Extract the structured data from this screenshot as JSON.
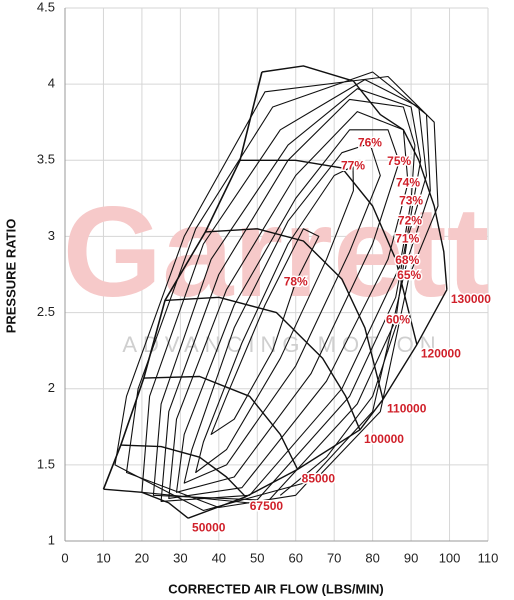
{
  "chart_data": {
    "type": "line",
    "xlabel": "CORRECTED AIR FLOW (LBS/MIN)",
    "ylabel": "PRESSURE RATIO",
    "watermark": "Garrett",
    "watermark_tagline": "ADVANCING MOTION",
    "xlim": [
      0,
      110
    ],
    "xticks": [
      0,
      10,
      20,
      30,
      40,
      50,
      60,
      70,
      80,
      90,
      100,
      110
    ],
    "ylim": [
      1,
      4.5
    ],
    "yticks": [
      1,
      1.5,
      2,
      2.5,
      3,
      3.5,
      4,
      4.5
    ],
    "grid": true,
    "line_color": "#111111",
    "label_color": "#d0202a",
    "series": [
      {
        "name": "50000",
        "x": [
          10,
          20,
          27,
          32
        ],
        "y": [
          1.34,
          1.32,
          1.25,
          1.15
        ]
      },
      {
        "name": "67500",
        "x": [
          14.5,
          25,
          35,
          42,
          47
        ],
        "y": [
          1.63,
          1.62,
          1.55,
          1.42,
          1.29
        ]
      },
      {
        "name": "85000",
        "x": [
          20.5,
          35,
          48,
          56,
          60.5
        ],
        "y": [
          2.07,
          2.08,
          1.95,
          1.7,
          1.47
        ]
      },
      {
        "name": "100000",
        "x": [
          26,
          40,
          55,
          67,
          73,
          76.7
        ],
        "y": [
          2.58,
          2.6,
          2.5,
          2.2,
          1.95,
          1.73
        ]
      },
      {
        "name": "110000",
        "x": [
          36.5,
          50,
          62,
          72,
          78,
          82.7
        ],
        "y": [
          3.03,
          3.05,
          2.97,
          2.72,
          2.4,
          1.93
        ]
      },
      {
        "name": "120000",
        "x": [
          45.5,
          60,
          72,
          80,
          86,
          91.5
        ],
        "y": [
          3.5,
          3.5,
          3.45,
          3.2,
          2.85,
          2.29
        ]
      },
      {
        "name": "130000",
        "x": [
          51.2,
          62,
          75,
          82,
          88,
          92,
          96,
          98.5,
          99.3
        ],
        "y": [
          4.08,
          4.12,
          4.02,
          3.8,
          3.7,
          3.5,
          3.2,
          2.9,
          2.65
        ]
      }
    ],
    "surge_line": {
      "x": [
        10,
        14.5,
        20.5,
        26,
        36.5,
        45.5,
        51.2
      ],
      "y": [
        1.34,
        1.63,
        2.07,
        2.58,
        3.03,
        3.5,
        4.08
      ]
    },
    "choke_line": {
      "x": [
        32,
        47,
        60.5,
        76.7,
        82.7,
        91.5,
        99.3
      ],
      "y": [
        1.15,
        1.29,
        1.47,
        1.73,
        1.93,
        2.29,
        2.65
      ]
    },
    "efficiency_islands": [
      {
        "name": "78%",
        "x": [
          60,
          66,
          62,
          52,
          42,
          38,
          44,
          54,
          60
        ],
        "y": [
          2.7,
          3.0,
          3.05,
          2.55,
          1.95,
          1.7,
          1.8,
          2.25,
          2.7
        ]
      },
      {
        "name": "77%",
        "x": [
          74.9,
          70,
          58,
          46,
          36,
          34,
          42,
          56,
          68,
          75,
          74.9
        ],
        "y": [
          3.46,
          3.4,
          2.95,
          2.3,
          1.65,
          1.45,
          1.6,
          2.2,
          2.85,
          3.3,
          3.46
        ]
      },
      {
        "name": "76%",
        "x": [
          79.3,
          72,
          58,
          44,
          33,
          31,
          42,
          60,
          74,
          82,
          79.3
        ],
        "y": [
          3.61,
          3.55,
          3.1,
          2.4,
          1.6,
          1.38,
          1.5,
          2.15,
          2.9,
          3.4,
          3.61
        ]
      },
      {
        "name": "75%",
        "x": [
          86.9,
          84,
          74,
          60,
          44,
          31,
          29,
          44,
          64,
          80,
          86.9
        ],
        "y": [
          3.49,
          3.7,
          3.7,
          3.25,
          2.55,
          1.7,
          1.32,
          1.42,
          2.1,
          2.95,
          3.49
        ]
      },
      {
        "name": "74%",
        "x": [
          89.2,
          88,
          76,
          60,
          42,
          29,
          27,
          46,
          68,
          84,
          89.2
        ],
        "y": [
          3.35,
          3.7,
          3.82,
          3.4,
          2.65,
          1.8,
          1.28,
          1.35,
          2.05,
          2.85,
          3.35
        ]
      },
      {
        "name": "73%",
        "x": [
          90,
          91,
          88,
          74,
          58,
          40,
          27,
          25,
          48,
          72,
          87,
          90
        ],
        "y": [
          3.23,
          3.6,
          3.85,
          3.9,
          3.5,
          2.75,
          1.85,
          1.26,
          1.3,
          2.0,
          2.8,
          3.23
        ]
      },
      {
        "name": "72%",
        "x": [
          89.7,
          92.5,
          90,
          76,
          58,
          38,
          25,
          23,
          50,
          74,
          86,
          89.7
        ],
        "y": [
          3.1,
          3.5,
          3.85,
          3.97,
          3.6,
          2.85,
          1.9,
          1.3,
          1.27,
          1.95,
          2.6,
          3.1
        ]
      },
      {
        "name": "71%",
        "x": [
          89,
          94,
          92,
          78,
          56,
          36,
          22,
          20,
          52,
          76,
          86,
          89
        ],
        "y": [
          2.98,
          3.4,
          3.85,
          4.03,
          3.7,
          2.95,
          1.95,
          1.32,
          1.24,
          1.9,
          2.45,
          2.98
        ]
      },
      {
        "name": "68%",
        "x": [
          89,
          95,
          94,
          80,
          54,
          34,
          19,
          16,
          40,
          60,
          80,
          89
        ],
        "y": [
          2.84,
          3.3,
          3.8,
          4.08,
          3.85,
          3.05,
          2.0,
          1.45,
          1.22,
          1.3,
          1.85,
          2.84
        ]
      },
      {
        "name": "65%",
        "x": [
          89.5,
          97,
          96,
          84,
          52,
          31,
          16,
          13,
          36,
          65,
          82,
          89.5
        ],
        "y": [
          2.74,
          3.2,
          3.75,
          4.05,
          3.95,
          3.0,
          1.95,
          1.5,
          1.2,
          1.4,
          1.85,
          2.74
        ]
      },
      {
        "name": "60%",
        "x": [
          86.6,
          80,
          68,
          56
        ],
        "y": [
          2.45,
          1.95,
          1.55,
          1.3
        ]
      }
    ]
  }
}
